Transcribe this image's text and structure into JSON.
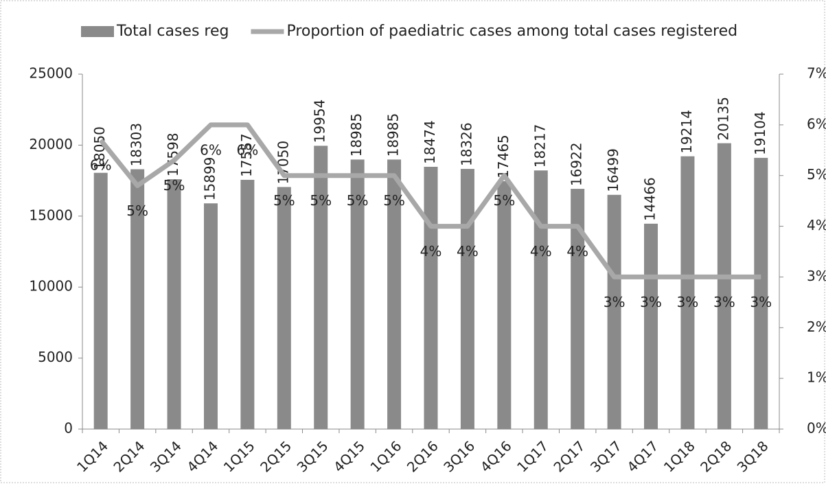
{
  "chart_data": {
    "type": "bar",
    "categories": [
      "1Q14",
      "2Q14",
      "3Q14",
      "4Q14",
      "1Q15",
      "2Q15",
      "3Q15",
      "4Q15",
      "1Q16",
      "2Q16",
      "3Q16",
      "4Q16",
      "1Q17",
      "2Q17",
      "3Q17",
      "4Q17",
      "1Q18",
      "2Q18",
      "3Q18"
    ],
    "series": [
      {
        "name": "Total cases reg",
        "type": "bar",
        "color": "#8a8a8a",
        "values": [
          18050,
          18303,
          17598,
          15899,
          17557,
          17050,
          19954,
          18985,
          18985,
          18474,
          18326,
          17465,
          18217,
          16922,
          16499,
          14466,
          19214,
          20135,
          19104
        ]
      },
      {
        "name": "Proportion of paediatric cases among total cases registered",
        "type": "line",
        "axis": "y2",
        "color": "#a8a8a8",
        "values": [
          5.7,
          4.8,
          5.3,
          6,
          6,
          5,
          5,
          5,
          5,
          4,
          4,
          5,
          4,
          4,
          3,
          3,
          3,
          3,
          3
        ],
        "value_labels": [
          "6%",
          "5%",
          "5%",
          "6%",
          "6%",
          "5%",
          "5%",
          "5%",
          "5%",
          "4%",
          "4%",
          "5%",
          "4%",
          "4%",
          "3%",
          "3%",
          "3%",
          "3%",
          "3%"
        ]
      }
    ],
    "ylim": [
      0,
      25000
    ],
    "yticks": [
      0,
      5000,
      10000,
      15000,
      20000,
      25000
    ],
    "y2lim": [
      0,
      7
    ],
    "y2ticks": [
      {
        "value": 0,
        "label": "0%"
      },
      {
        "value": 1,
        "label": "1%"
      },
      {
        "value": 2,
        "label": "2%"
      },
      {
        "value": 3,
        "label": "3%"
      },
      {
        "value": 4,
        "label": "4%"
      },
      {
        "value": 5,
        "label": "5%"
      },
      {
        "value": 6,
        "label": "6%"
      },
      {
        "value": 7,
        "label": "7%"
      }
    ],
    "legend": "top",
    "grid": false
  }
}
